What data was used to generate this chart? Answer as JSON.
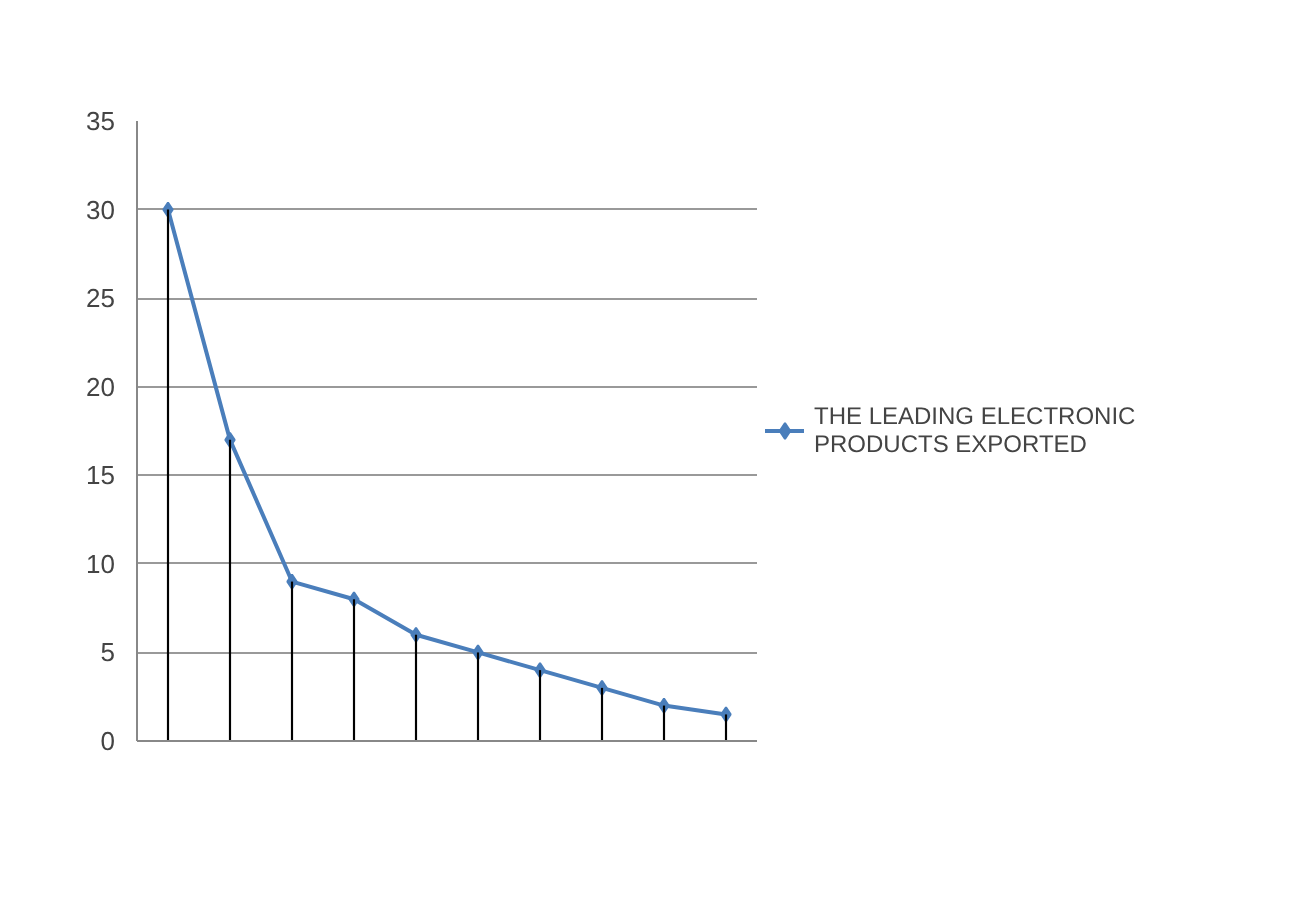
{
  "chart_data": {
    "type": "line",
    "categories": [
      null,
      null,
      null,
      null,
      null,
      null,
      null,
      null,
      null,
      null
    ],
    "series": [
      {
        "name": "THE LEADING ELECTRONIC PRODUCTS EXPORTED",
        "color": "#4a7ebb",
        "marker": "diamond",
        "values": [
          30,
          17,
          9,
          8,
          6,
          5,
          4,
          3,
          2,
          1.5
        ]
      },
      {
        "type": "bar",
        "color": "#000000",
        "values": [
          30,
          17,
          9,
          8,
          6,
          5,
          4,
          3,
          2,
          1.5
        ]
      }
    ],
    "ylim": [
      0,
      35
    ],
    "yticks": [
      0,
      5,
      10,
      15,
      20,
      25,
      30,
      35
    ],
    "grid": "y",
    "legend": "right",
    "tick_labels": "y",
    "line_style": "solid"
  }
}
